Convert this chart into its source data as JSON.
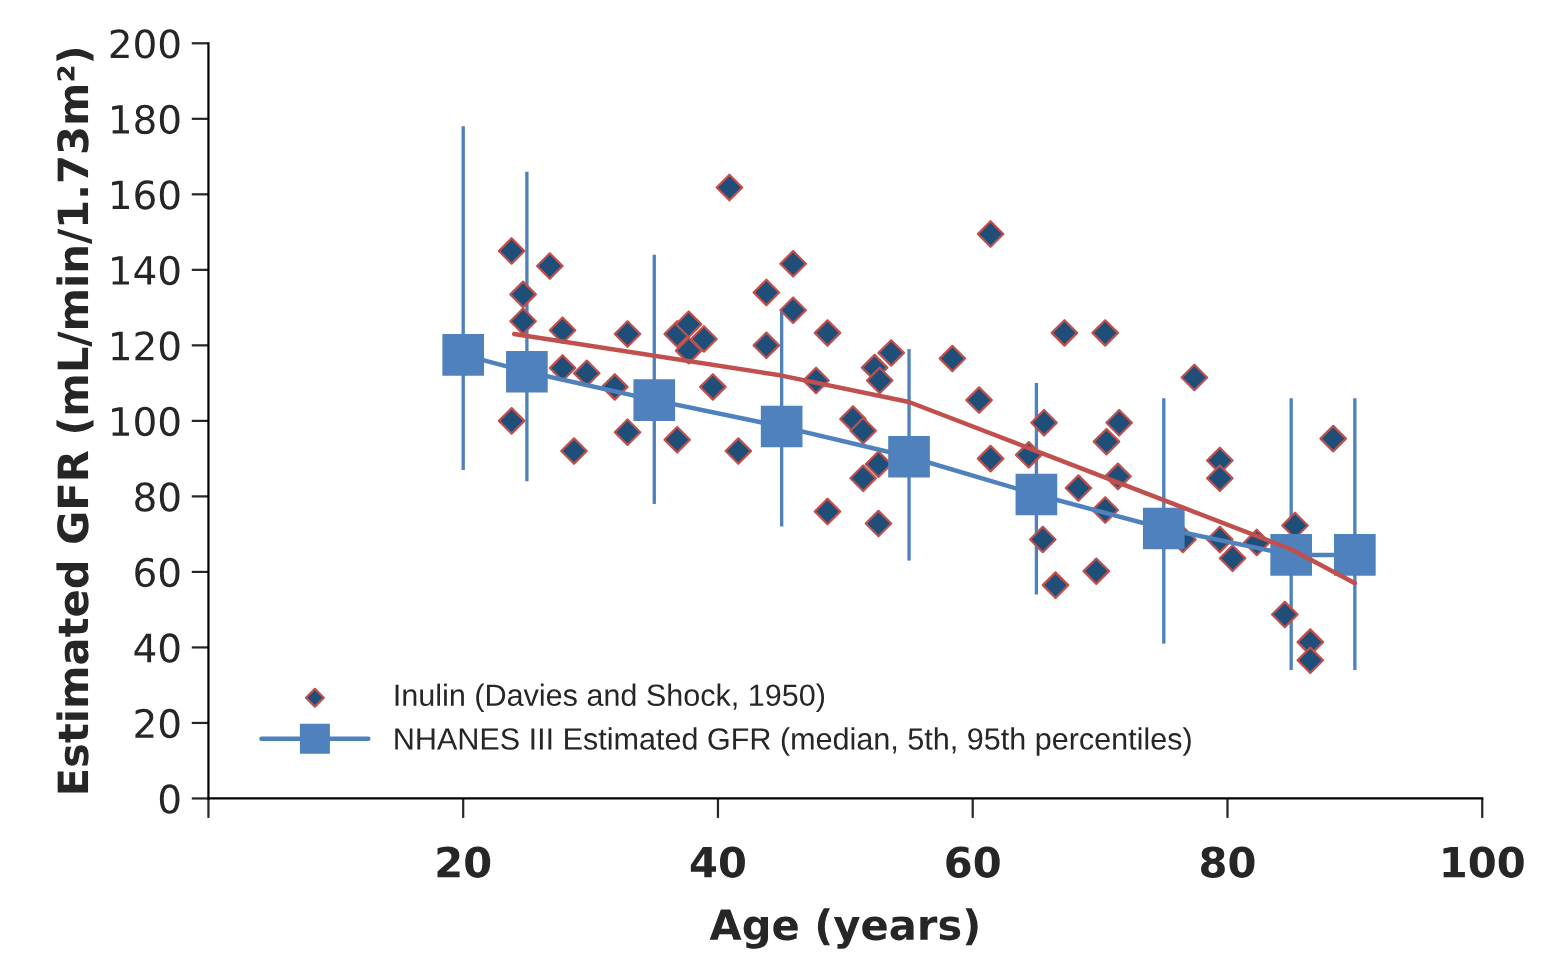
{
  "chart_data": {
    "type": "scatter",
    "xlabel": "Age (years)",
    "ylabel": "Estimated GFR (mL/min/1.73m²)",
    "xlim": [
      0,
      100
    ],
    "xticks": [
      {
        "value": 0,
        "label": null
      },
      20,
      40,
      60,
      80,
      100
    ],
    "ylim": [
      0,
      200
    ],
    "yticks": [
      0,
      20,
      40,
      60,
      80,
      100,
      120,
      140,
      160,
      180,
      200
    ],
    "grid": false,
    "legend": "bottom left",
    "series": [
      {
        "name": "Inulin (Davies and Shock, 1950)",
        "marker": "diamond",
        "color": "#1f4e79",
        "x": [
          23.8,
          23.8,
          24.7,
          24.7,
          26.8,
          27.8,
          27.8,
          28.7,
          29.7,
          31.9,
          32.9,
          32.9,
          36.8,
          36.8,
          37.7,
          37.7,
          38.9,
          39.6,
          40.9,
          41.6,
          43.8,
          43.8,
          45.9,
          45.9,
          47.7,
          48.6,
          48.6,
          50.6,
          51.4,
          51.4,
          52.3,
          52.7,
          52.6,
          52.6,
          53.6,
          58.4,
          60.5,
          61.4,
          61.4,
          64.4,
          65.6,
          65.5,
          66.5,
          67.2,
          68.3,
          69.7,
          70.4,
          70.5,
          70.4,
          71.5,
          71.4,
          76.5,
          77.4,
          79.4,
          79.4,
          79.4,
          80.4,
          82.3,
          84.5,
          85.3,
          86.5,
          86.5,
          88.3
        ],
        "values": [
          145,
          100,
          133.5,
          126.4,
          141,
          124,
          114,
          92,
          112.6,
          109,
          123,
          97,
          123,
          95,
          125.6,
          118.6,
          121.7,
          109,
          161.8,
          92,
          134,
          120,
          141.6,
          129.3,
          110.7,
          123.3,
          76,
          100.5,
          97.4,
          84.8,
          114.1,
          110.7,
          88.5,
          72.8,
          118,
          116.5,
          105.5,
          90,
          149.5,
          91,
          99.5,
          68.6,
          56.5,
          123.3,
          82.2,
          60.2,
          123.3,
          94.5,
          76.4,
          99.5,
          85.3,
          68.6,
          111.5,
          89.5,
          84.8,
          68.6,
          63.6,
          67.8,
          48.7,
          72.3,
          41.4,
          36.6,
          95.3
        ]
      },
      {
        "type": "line",
        "marker": "none",
        "color": "#c0504d",
        "x": [
          24,
          45,
          55,
          65,
          75,
          85,
          90
        ],
        "values": [
          123,
          112,
          105,
          92,
          79,
          66,
          57
        ]
      },
      {
        "name": "NHANES III Estimated GFR (median, 5th, 95th percentiles)",
        "type": "line",
        "marker": "square",
        "color": "#4f81bd",
        "x": [
          20,
          25,
          35,
          45,
          55,
          65,
          75,
          85,
          90
        ],
        "values": [
          117.5,
          113,
          105.5,
          98.5,
          90.5,
          80.5,
          71.5,
          64.5,
          64.5
        ],
        "errors": [
          [
            87,
            178
          ],
          [
            84,
            166
          ],
          [
            78,
            144
          ],
          [
            72,
            129
          ],
          [
            63,
            119
          ],
          [
            54,
            110
          ],
          [
            41,
            106
          ],
          [
            34,
            106
          ],
          [
            34,
            106
          ]
        ]
      }
    ]
  }
}
